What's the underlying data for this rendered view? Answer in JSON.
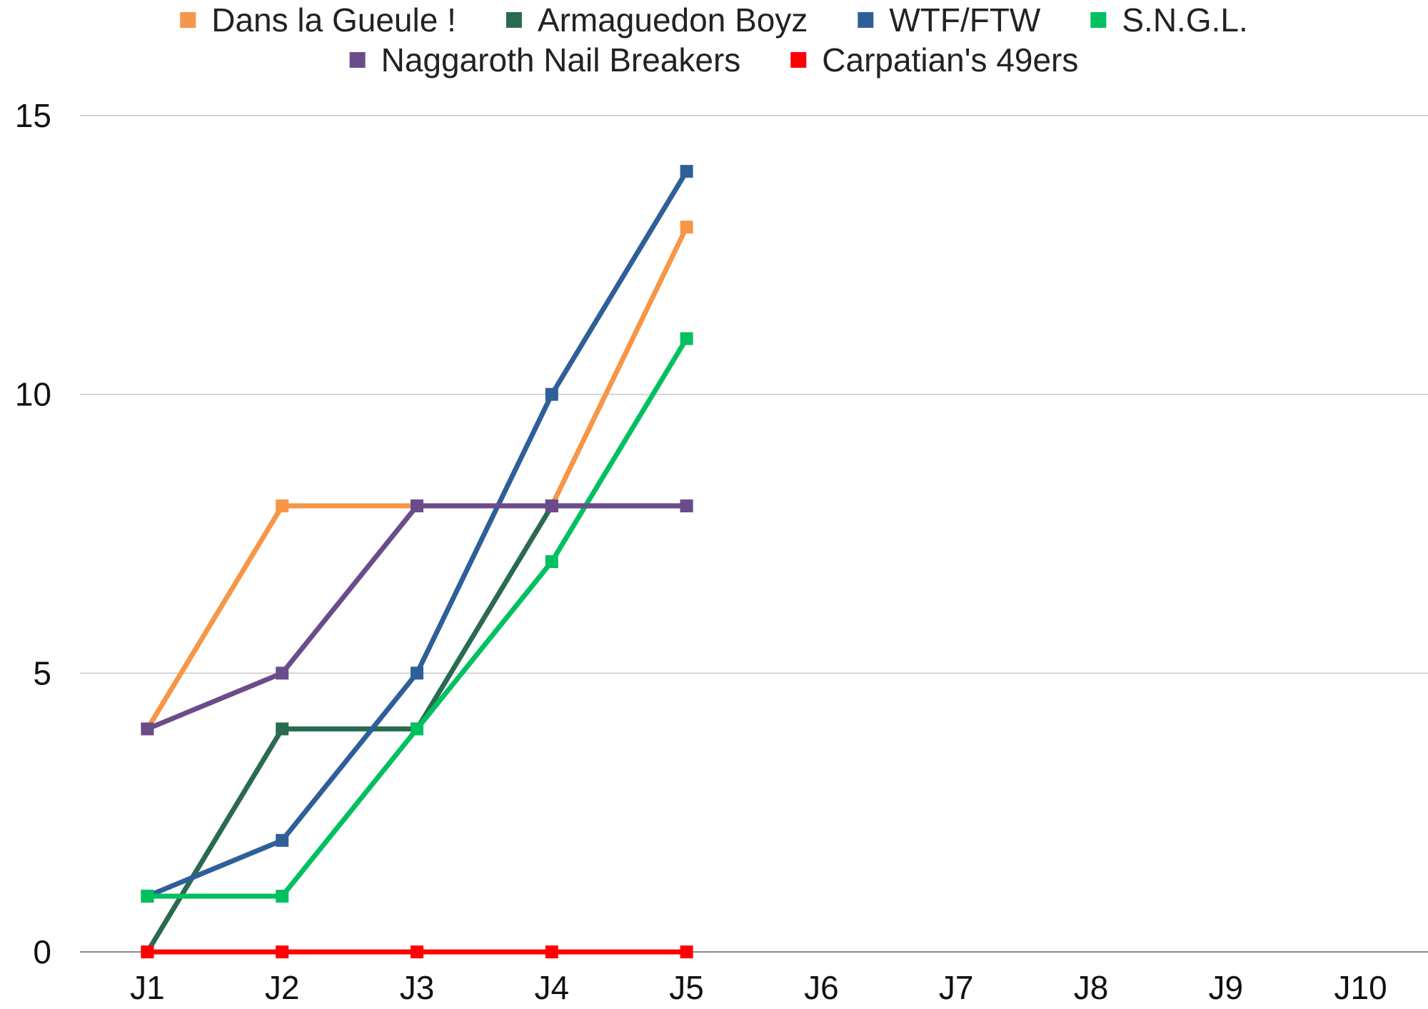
{
  "chart_data": {
    "type": "line",
    "categories": [
      "J1",
      "J2",
      "J3",
      "J4",
      "J5",
      "J6",
      "J7",
      "J8",
      "J9",
      "J10"
    ],
    "ylim": [
      0,
      15
    ],
    "yticks": [
      "0",
      "5",
      "10",
      "15"
    ],
    "grid": true,
    "legend_position": "top",
    "series": [
      {
        "name": "Dans la Gueule !",
        "color": "#F79646",
        "values": [
          4,
          8,
          8,
          8,
          13,
          null,
          null,
          null,
          null,
          null
        ]
      },
      {
        "name": "Armaguedon Boyz",
        "color": "#2A6B4F",
        "values": [
          0,
          4,
          4,
          8,
          8,
          null,
          null,
          null,
          null,
          null
        ]
      },
      {
        "name": "WTF/FTW",
        "color": "#2E5F99",
        "values": [
          1,
          2,
          5,
          10,
          14,
          null,
          null,
          null,
          null,
          null
        ]
      },
      {
        "name": "S.N.G.L.",
        "color": "#00C060",
        "values": [
          1,
          1,
          4,
          7,
          11,
          null,
          null,
          null,
          null,
          null
        ]
      },
      {
        "name": "Naggaroth Nail Breakers",
        "color": "#6B4C8A",
        "values": [
          4,
          5,
          8,
          8,
          8,
          null,
          null,
          null,
          null,
          null
        ]
      },
      {
        "name": "Carpatian's 49ers",
        "color": "#FF0000",
        "values": [
          0,
          0,
          0,
          0,
          0,
          null,
          null,
          null,
          null,
          null
        ]
      }
    ]
  }
}
